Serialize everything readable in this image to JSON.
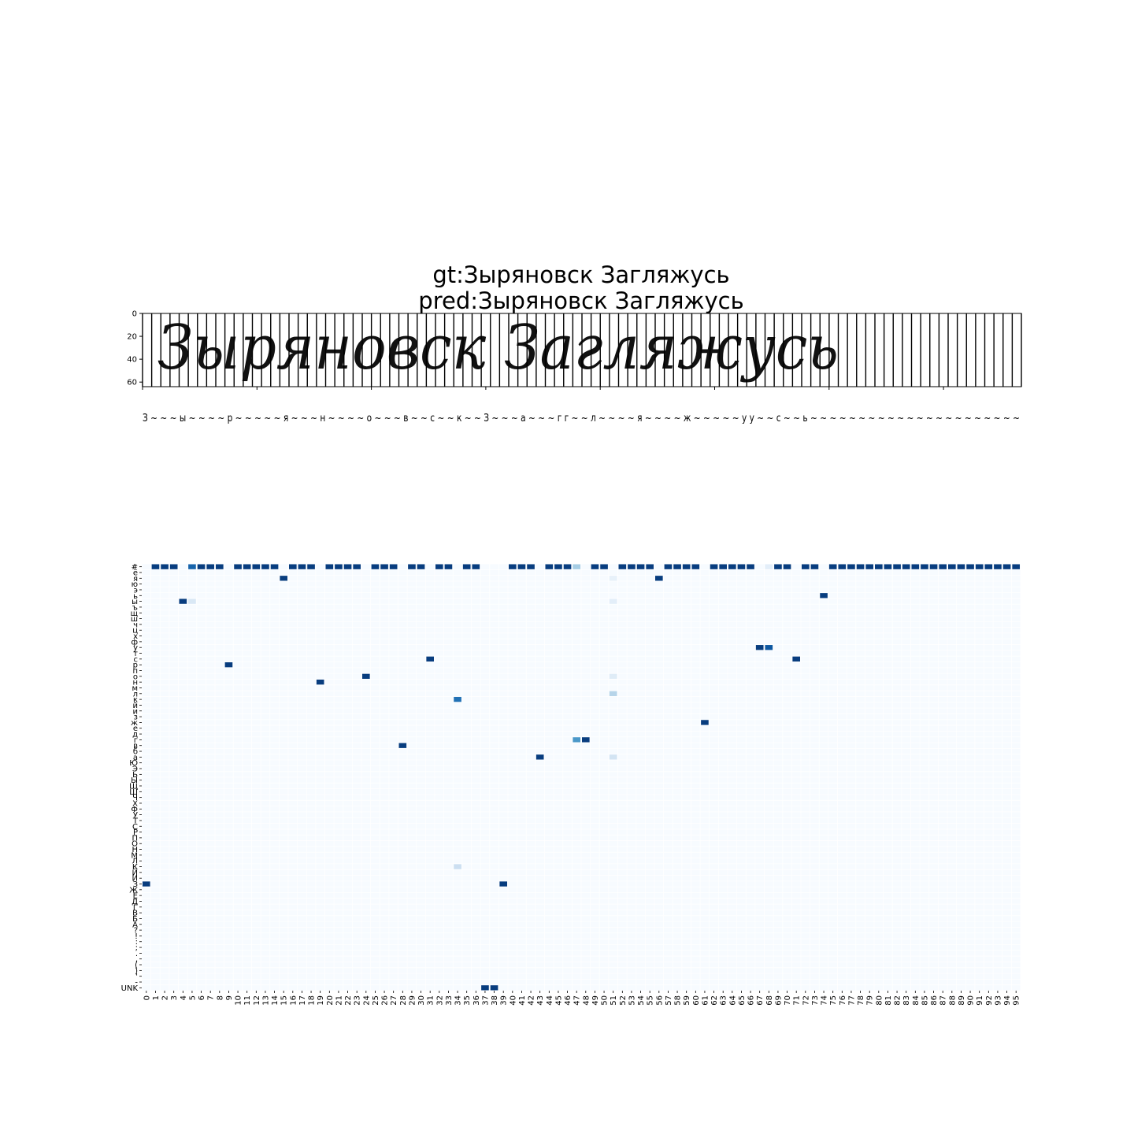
{
  "chart_data": [
    {
      "type": "image",
      "title_lines": [
        "gt:Зыряновск Загляжусь",
        "pred:Зыряновск Загляжусь"
      ],
      "image_text": "Зыряновск Загляжусь",
      "yticks": [
        0,
        20,
        40,
        60
      ],
      "ylim": [
        64,
        0
      ],
      "columns": 96,
      "decoded_label": "З ~ ~ ~ ы ~ ~ ~ ~ р ~ ~ ~ ~ ~ я ~ ~ ~ н ~ ~ ~ ~ о ~ ~ ~ в ~ ~ с ~ ~ к ~ ~       З ~ ~ ~ а ~ ~ ~ г г ~ ~ л ~ ~ ~ ~ я ~ ~ ~ ~ ж ~ ~ ~ ~ ~ у у ~ ~ с ~ ~ ь ~ ~ ~ ~ ~ ~ ~ ~ ~ ~ ~ ~ ~ ~ ~ ~ ~ ~ ~ ~ ~ ~"
    },
    {
      "type": "heatmap",
      "colormap": "Blues",
      "x_labels": [
        "0",
        "1",
        "2",
        "3",
        "4",
        "5",
        "6",
        "7",
        "8",
        "9",
        "10",
        "11",
        "12",
        "13",
        "14",
        "15",
        "16",
        "17",
        "18",
        "19",
        "20",
        "21",
        "22",
        "23",
        "24",
        "25",
        "26",
        "27",
        "28",
        "29",
        "30",
        "31",
        "32",
        "33",
        "34",
        "35",
        "36",
        "37",
        "38",
        "39",
        "40",
        "41",
        "42",
        "43",
        "44",
        "45",
        "46",
        "47",
        "48",
        "49",
        "50",
        "51",
        "52",
        "53",
        "54",
        "55",
        "56",
        "57",
        "58",
        "59",
        "60",
        "61",
        "62",
        "63",
        "64",
        "65",
        "66",
        "67",
        "68",
        "69",
        "70",
        "71",
        "72",
        "73",
        "74",
        "75",
        "76",
        "77",
        "78",
        "79",
        "80",
        "81",
        "82",
        "83",
        "84",
        "85",
        "86",
        "87",
        "88",
        "89",
        "90",
        "91",
        "92",
        "93",
        "94",
        "95"
      ],
      "y_labels": [
        "#",
        "ё",
        "я",
        "ю",
        "э",
        "ь",
        "ы",
        "ъ",
        "щ",
        "ш",
        "ч",
        "ц",
        "х",
        "ф",
        "у",
        "т",
        "с",
        "р",
        "п",
        "о",
        "н",
        "м",
        "л",
        "к",
        "й",
        "и",
        "з",
        "ж",
        "е",
        "д",
        "г",
        "в",
        "б",
        "а",
        "Ю",
        "Э",
        "Ь",
        "Ы",
        "Щ",
        "Ш",
        "Ч",
        "Х",
        "Ф",
        "У",
        "Т",
        "С",
        "Р",
        "П",
        "О",
        "Н",
        "М",
        "Л",
        "К",
        "Й",
        "И",
        "З",
        "Ж",
        "Е",
        "Д",
        "Г",
        "В",
        "Б",
        "А",
        "?",
        "!",
        ":",
        ";",
        ".",
        ",",
        "(",
        ")",
        "'",
        "-",
        "UNK"
      ],
      "y_tick_labels": [
        "#",
        "ё",
        "я",
        "ю",
        "э",
        "ь",
        "ы",
        "ъ",
        "щ",
        "ш",
        "ч",
        "ц",
        "х",
        "ф",
        "у",
        "т",
        "с",
        "р",
        "п",
        "о",
        "н",
        "м",
        "л",
        "к",
        "й",
        "и",
        "з",
        "ж",
        "е",
        "д",
        "г",
        "в",
        "б",
        "а",
        "Ю",
        "Э",
        "Ь",
        "Ы",
        "Щ",
        "Ш",
        "Ч",
        "Х",
        "Ф",
        "У",
        "Т",
        "С",
        "Р",
        "П",
        "О",
        "Н",
        "М",
        "Л",
        "К",
        "Й",
        "И",
        "З",
        "Ж",
        "Е",
        "Д",
        "Г",
        "В",
        "Б",
        "А",
        "?",
        "!",
        ":",
        ";",
        ".",
        ",",
        "(",
        ")",
        "'",
        "-",
        "UNK"
      ],
      "cells": [
        [
          0,
          55,
          0.95
        ],
        [
          1,
          0,
          0.95
        ],
        [
          2,
          0,
          0.95
        ],
        [
          3,
          0,
          0.95
        ],
        [
          4,
          6,
          0.95
        ],
        [
          5,
          0,
          0.8
        ],
        [
          5,
          6,
          0.15
        ],
        [
          6,
          0,
          0.95
        ],
        [
          7,
          0,
          0.95
        ],
        [
          8,
          0,
          0.95
        ],
        [
          9,
          17,
          0.95
        ],
        [
          10,
          0,
          0.95
        ],
        [
          11,
          0,
          0.95
        ],
        [
          12,
          0,
          0.95
        ],
        [
          13,
          0,
          0.95
        ],
        [
          14,
          0,
          0.95
        ],
        [
          15,
          2,
          0.95
        ],
        [
          16,
          0,
          0.95
        ],
        [
          17,
          0,
          0.95
        ],
        [
          18,
          0,
          0.95
        ],
        [
          19,
          20,
          0.95
        ],
        [
          20,
          0,
          0.95
        ],
        [
          21,
          0,
          0.95
        ],
        [
          22,
          0,
          0.95
        ],
        [
          23,
          0,
          0.95
        ],
        [
          24,
          19,
          0.95
        ],
        [
          25,
          0,
          0.95
        ],
        [
          26,
          0,
          0.95
        ],
        [
          27,
          0,
          0.95
        ],
        [
          28,
          31,
          0.95
        ],
        [
          29,
          0,
          0.95
        ],
        [
          30,
          0,
          0.95
        ],
        [
          31,
          16,
          0.95
        ],
        [
          32,
          0,
          0.95
        ],
        [
          33,
          0,
          0.95
        ],
        [
          34,
          23,
          0.75
        ],
        [
          34,
          52,
          0.22
        ],
        [
          35,
          0,
          0.95
        ],
        [
          36,
          0,
          0.95
        ],
        [
          37,
          73,
          0.95
        ],
        [
          38,
          73,
          0.95
        ],
        [
          39,
          55,
          0.95
        ],
        [
          40,
          0,
          0.95
        ],
        [
          41,
          0,
          0.95
        ],
        [
          42,
          0,
          0.95
        ],
        [
          43,
          33,
          0.95
        ],
        [
          44,
          0,
          0.95
        ],
        [
          45,
          0,
          0.95
        ],
        [
          46,
          0,
          0.95
        ],
        [
          47,
          0,
          0.35
        ],
        [
          47,
          30,
          0.6
        ],
        [
          48,
          30,
          0.95
        ],
        [
          49,
          0,
          0.95
        ],
        [
          50,
          0,
          0.95
        ],
        [
          51,
          2,
          0.08
        ],
        [
          51,
          6,
          0.1
        ],
        [
          51,
          19,
          0.12
        ],
        [
          51,
          22,
          0.3
        ],
        [
          51,
          33,
          0.18
        ],
        [
          52,
          0,
          0.95
        ],
        [
          53,
          0,
          0.95
        ],
        [
          54,
          0,
          0.95
        ],
        [
          55,
          0,
          0.95
        ],
        [
          56,
          2,
          0.95
        ],
        [
          57,
          0,
          0.95
        ],
        [
          58,
          0,
          0.95
        ],
        [
          59,
          0,
          0.95
        ],
        [
          60,
          0,
          0.95
        ],
        [
          61,
          27,
          0.95
        ],
        [
          62,
          0,
          0.95
        ],
        [
          63,
          0,
          0.95
        ],
        [
          64,
          0,
          0.95
        ],
        [
          65,
          0,
          0.95
        ],
        [
          66,
          0,
          0.95
        ],
        [
          67,
          14,
          0.95
        ],
        [
          68,
          0,
          0.1
        ],
        [
          68,
          14,
          0.85
        ],
        [
          69,
          0,
          0.95
        ],
        [
          70,
          0,
          0.95
        ],
        [
          71,
          16,
          0.95
        ],
        [
          72,
          0,
          0.95
        ],
        [
          73,
          0,
          0.95
        ],
        [
          74,
          5,
          0.95
        ],
        [
          75,
          0,
          0.95
        ],
        [
          76,
          0,
          0.95
        ],
        [
          77,
          0,
          0.95
        ],
        [
          78,
          0,
          0.95
        ],
        [
          79,
          0,
          0.95
        ],
        [
          80,
          0,
          0.95
        ],
        [
          81,
          0,
          0.95
        ],
        [
          82,
          0,
          0.95
        ],
        [
          83,
          0,
          0.95
        ],
        [
          84,
          0,
          0.95
        ],
        [
          85,
          0,
          0.95
        ],
        [
          86,
          0,
          0.95
        ],
        [
          87,
          0,
          0.95
        ],
        [
          88,
          0,
          0.95
        ],
        [
          89,
          0,
          0.95
        ],
        [
          90,
          0,
          0.95
        ],
        [
          91,
          0,
          0.95
        ],
        [
          92,
          0,
          0.95
        ],
        [
          93,
          0,
          0.95
        ],
        [
          94,
          0,
          0.95
        ],
        [
          95,
          0,
          0.95
        ]
      ]
    }
  ]
}
